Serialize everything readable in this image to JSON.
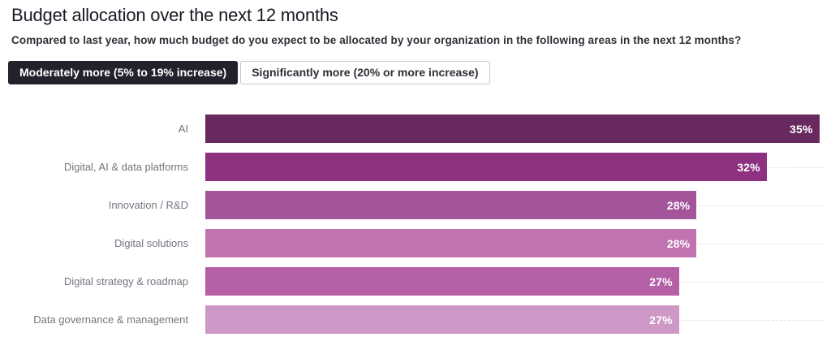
{
  "header": {
    "title": "Budget allocation over the next 12 months",
    "subtitle": "Compared to last year, how much budget do you expect to be allocated by your organization in the following areas in the next 12 months?"
  },
  "tabs": [
    {
      "label": "Moderately more (5% to 19% increase)",
      "selected": true
    },
    {
      "label": "Significantly more (20% or more increase)",
      "selected": false
    }
  ],
  "chart_data": {
    "type": "bar",
    "orientation": "horizontal",
    "title": "Budget allocation over the next 12 months",
    "categories": [
      "AI",
      "Digital, AI & data platforms",
      "Innovation / R&D",
      "Digital solutions",
      "Digital strategy & roadmap",
      "Data governance & management"
    ],
    "values": [
      35,
      32,
      28,
      28,
      27,
      27
    ],
    "value_labels": [
      "35%",
      "32%",
      "28%",
      "28%",
      "27%",
      "27%"
    ],
    "bar_colors": [
      "#682a5e",
      "#8e3181",
      "#a4549a",
      "#c172b1",
      "#b560a6",
      "#cd97c6"
    ],
    "xlim": [
      0,
      35.2
    ],
    "xlabel": "",
    "ylabel": "",
    "legend": "none",
    "grid": "dashed horizontal row guides"
  },
  "ui_colors": {
    "selected_tab_bg": "#22222c",
    "selected_tab_text": "#ffffff",
    "category_label": "#747480",
    "bar_value_text": "#ffffff",
    "guide_line": "#e4e2e6"
  }
}
